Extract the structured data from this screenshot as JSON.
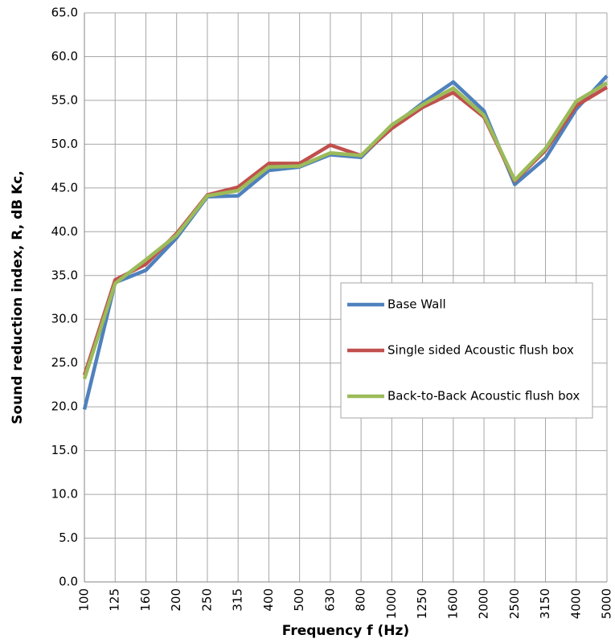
{
  "chart_data": {
    "type": "line",
    "x_label": "Frequency f (Hz)",
    "y_label": "Sound reduction index, R, dB Kc,",
    "categories": [
      "100",
      "125",
      "160",
      "200",
      "250",
      "315",
      "400",
      "500",
      "630",
      "800",
      "1000",
      "1250",
      "1600",
      "2000",
      "2500",
      "3150",
      "4000",
      "5000"
    ],
    "series": [
      {
        "name": "Base Wall",
        "color": "#4f81bd",
        "values": [
          19.7,
          34.2,
          35.6,
          39.3,
          44.0,
          44.1,
          47.0,
          47.4,
          48.8,
          48.5,
          52.0,
          54.7,
          57.1,
          53.8,
          45.4,
          48.4,
          54.0,
          57.8
        ]
      },
      {
        "name": "Single sided Acoustic flush box",
        "color": "#c0504d",
        "values": [
          23.6,
          34.5,
          36.3,
          39.8,
          44.2,
          45.1,
          47.8,
          47.8,
          49.9,
          48.7,
          51.8,
          54.2,
          55.9,
          53.1,
          45.8,
          49.3,
          54.4,
          56.5
        ]
      },
      {
        "name": "Back-to-Back Acoustic flush box",
        "color": "#9bbb59",
        "values": [
          23.2,
          34.1,
          36.8,
          39.6,
          44.1,
          44.7,
          47.4,
          47.5,
          49.0,
          48.7,
          52.2,
          54.5,
          56.4,
          53.3,
          45.9,
          49.5,
          54.9,
          57.0
        ]
      }
    ],
    "ylim": [
      0,
      65
    ],
    "yticks": [
      {
        "value": 0,
        "label": "0.0"
      },
      {
        "value": 5,
        "label": "5.0"
      },
      {
        "value": 10,
        "label": "10.0"
      },
      {
        "value": 15,
        "label": "15.0"
      },
      {
        "value": 20,
        "label": "20.0"
      },
      {
        "value": 25,
        "label": "25.0"
      },
      {
        "value": 30,
        "label": "30.0"
      },
      {
        "value": 35,
        "label": "35.0"
      },
      {
        "value": 40,
        "label": "40.0"
      },
      {
        "value": 45,
        "label": "45.0"
      },
      {
        "value": 50,
        "label": "50.0"
      },
      {
        "value": 55,
        "label": "55.0"
      },
      {
        "value": 60,
        "label": "60.0"
      },
      {
        "value": 65,
        "label": "65.0"
      }
    ],
    "grid": true
  }
}
